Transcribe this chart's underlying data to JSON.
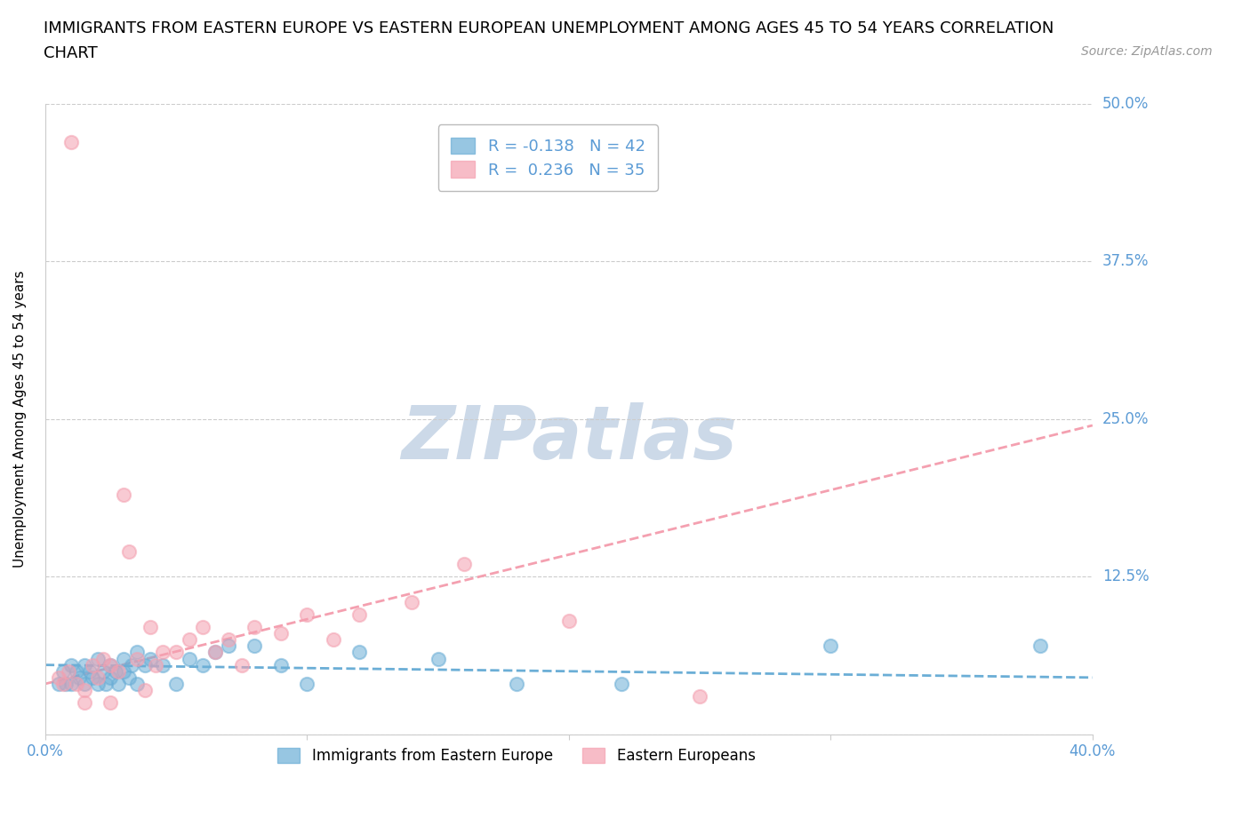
{
  "title_line1": "IMMIGRANTS FROM EASTERN EUROPE VS EASTERN EUROPEAN UNEMPLOYMENT AMONG AGES 45 TO 54 YEARS CORRELATION",
  "title_line2": "CHART",
  "source": "Source: ZipAtlas.com",
  "ylabel": "Unemployment Among Ages 45 to 54 years",
  "xlim": [
    0.0,
    0.4
  ],
  "ylim": [
    0.0,
    0.5
  ],
  "yticks": [
    0.0,
    0.125,
    0.25,
    0.375,
    0.5
  ],
  "ytick_labels": [
    "",
    "12.5%",
    "25.0%",
    "37.5%",
    "50.0%"
  ],
  "xticks": [
    0.0,
    0.1,
    0.2,
    0.3,
    0.4
  ],
  "xtick_labels": [
    "0.0%",
    "",
    "",
    "",
    "40.0%"
  ],
  "legend_entry1": "R = -0.138   N = 42",
  "legend_entry2": "R =  0.236   N = 35",
  "legend_label1": "Immigrants from Eastern Europe",
  "legend_label2": "Eastern Europeans",
  "blue_color": "#6baed6",
  "pink_color": "#f4a0b0",
  "background_color": "#ffffff",
  "watermark": "ZIPatlas",
  "blue_scatter_x": [
    0.005,
    0.007,
    0.008,
    0.01,
    0.01,
    0.012,
    0.013,
    0.015,
    0.015,
    0.017,
    0.018,
    0.02,
    0.02,
    0.022,
    0.023,
    0.025,
    0.025,
    0.027,
    0.028,
    0.03,
    0.03,
    0.032,
    0.033,
    0.035,
    0.035,
    0.038,
    0.04,
    0.045,
    0.05,
    0.055,
    0.06,
    0.065,
    0.07,
    0.08,
    0.09,
    0.1,
    0.12,
    0.15,
    0.18,
    0.22,
    0.3,
    0.38
  ],
  "blue_scatter_y": [
    0.04,
    0.05,
    0.04,
    0.055,
    0.04,
    0.05,
    0.045,
    0.055,
    0.04,
    0.05,
    0.045,
    0.04,
    0.06,
    0.05,
    0.04,
    0.055,
    0.045,
    0.05,
    0.04,
    0.05,
    0.06,
    0.045,
    0.055,
    0.04,
    0.065,
    0.055,
    0.06,
    0.055,
    0.04,
    0.06,
    0.055,
    0.065,
    0.07,
    0.07,
    0.055,
    0.04,
    0.065,
    0.06,
    0.04,
    0.04,
    0.07,
    0.07
  ],
  "pink_scatter_x": [
    0.005,
    0.007,
    0.009,
    0.01,
    0.012,
    0.015,
    0.015,
    0.018,
    0.02,
    0.022,
    0.025,
    0.025,
    0.028,
    0.03,
    0.032,
    0.035,
    0.038,
    0.04,
    0.042,
    0.045,
    0.05,
    0.055,
    0.06,
    0.065,
    0.07,
    0.075,
    0.08,
    0.09,
    0.1,
    0.11,
    0.12,
    0.14,
    0.16,
    0.2,
    0.25
  ],
  "pink_scatter_y": [
    0.045,
    0.04,
    0.05,
    0.47,
    0.04,
    0.035,
    0.025,
    0.055,
    0.045,
    0.06,
    0.055,
    0.025,
    0.05,
    0.19,
    0.145,
    0.06,
    0.035,
    0.085,
    0.055,
    0.065,
    0.065,
    0.075,
    0.085,
    0.065,
    0.075,
    0.055,
    0.085,
    0.08,
    0.095,
    0.075,
    0.095,
    0.105,
    0.135,
    0.09,
    0.03
  ],
  "blue_trend_x": [
    0.0,
    0.4
  ],
  "blue_trend_y": [
    0.055,
    0.045
  ],
  "pink_trend_x": [
    0.0,
    0.4
  ],
  "pink_trend_y": [
    0.04,
    0.245
  ],
  "grid_color": "#cccccc",
  "tick_color": "#5b9bd5",
  "title_fontsize": 13,
  "axis_label_fontsize": 11,
  "tick_fontsize": 12,
  "watermark_color": "#ccd9e8",
  "watermark_fontsize": 60,
  "scatter_size": 120,
  "scatter_alpha": 0.55,
  "scatter_linewidth": 1.5
}
